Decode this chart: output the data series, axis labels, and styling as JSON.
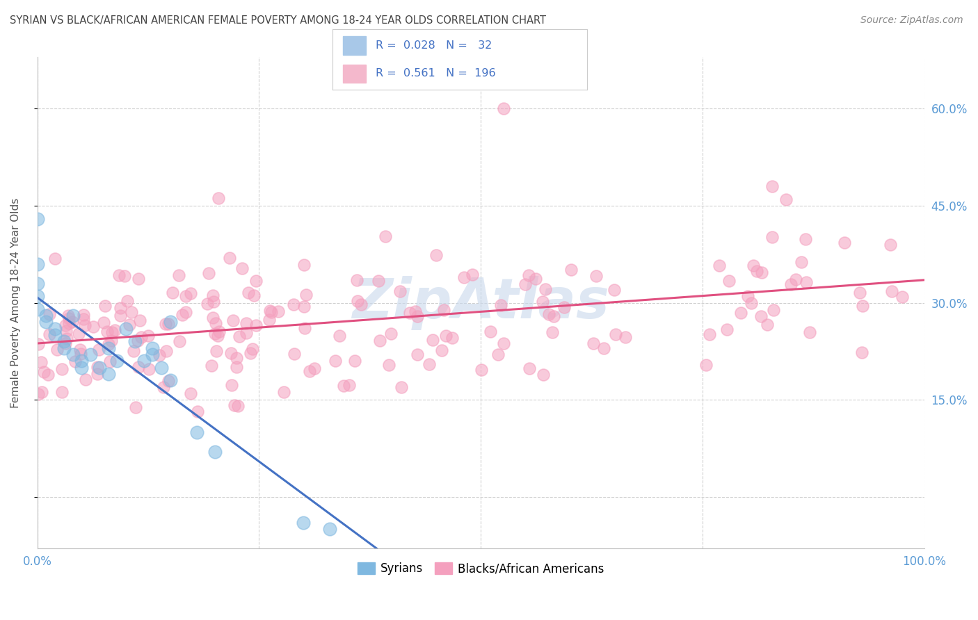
{
  "title_display": "SYRIAN VS BLACK/AFRICAN AMERICAN FEMALE POVERTY AMONG 18-24 YEAR OLDS CORRELATION CHART",
  "source": "Source: ZipAtlas.com",
  "ylabel": "Female Poverty Among 18-24 Year Olds",
  "xlim": [
    0,
    1.0
  ],
  "ylim": [
    -0.08,
    0.68
  ],
  "ytick_vals": [
    0.0,
    0.15,
    0.3,
    0.45,
    0.6
  ],
  "xtick_vals": [
    0.0,
    0.25,
    0.5,
    0.75,
    1.0
  ],
  "syrians_R": 0.028,
  "syrians_N": 32,
  "blacks_R": 0.561,
  "blacks_N": 196,
  "syrian_color": "#7fb8e0",
  "black_color": "#f4a0be",
  "syrian_line_color": "#4472c4",
  "black_line_color": "#e05080",
  "watermark_color": "#c8d8ec",
  "background_color": "#ffffff",
  "grid_color": "#d0d0d0",
  "tick_color": "#5b9bd5",
  "legend_text_color": "#4472c4",
  "legend_syrian_patch": "#a8c8e8",
  "legend_black_patch": "#f4b8cc",
  "title_color": "#444444",
  "source_color": "#888888",
  "ylabel_color": "#555555"
}
